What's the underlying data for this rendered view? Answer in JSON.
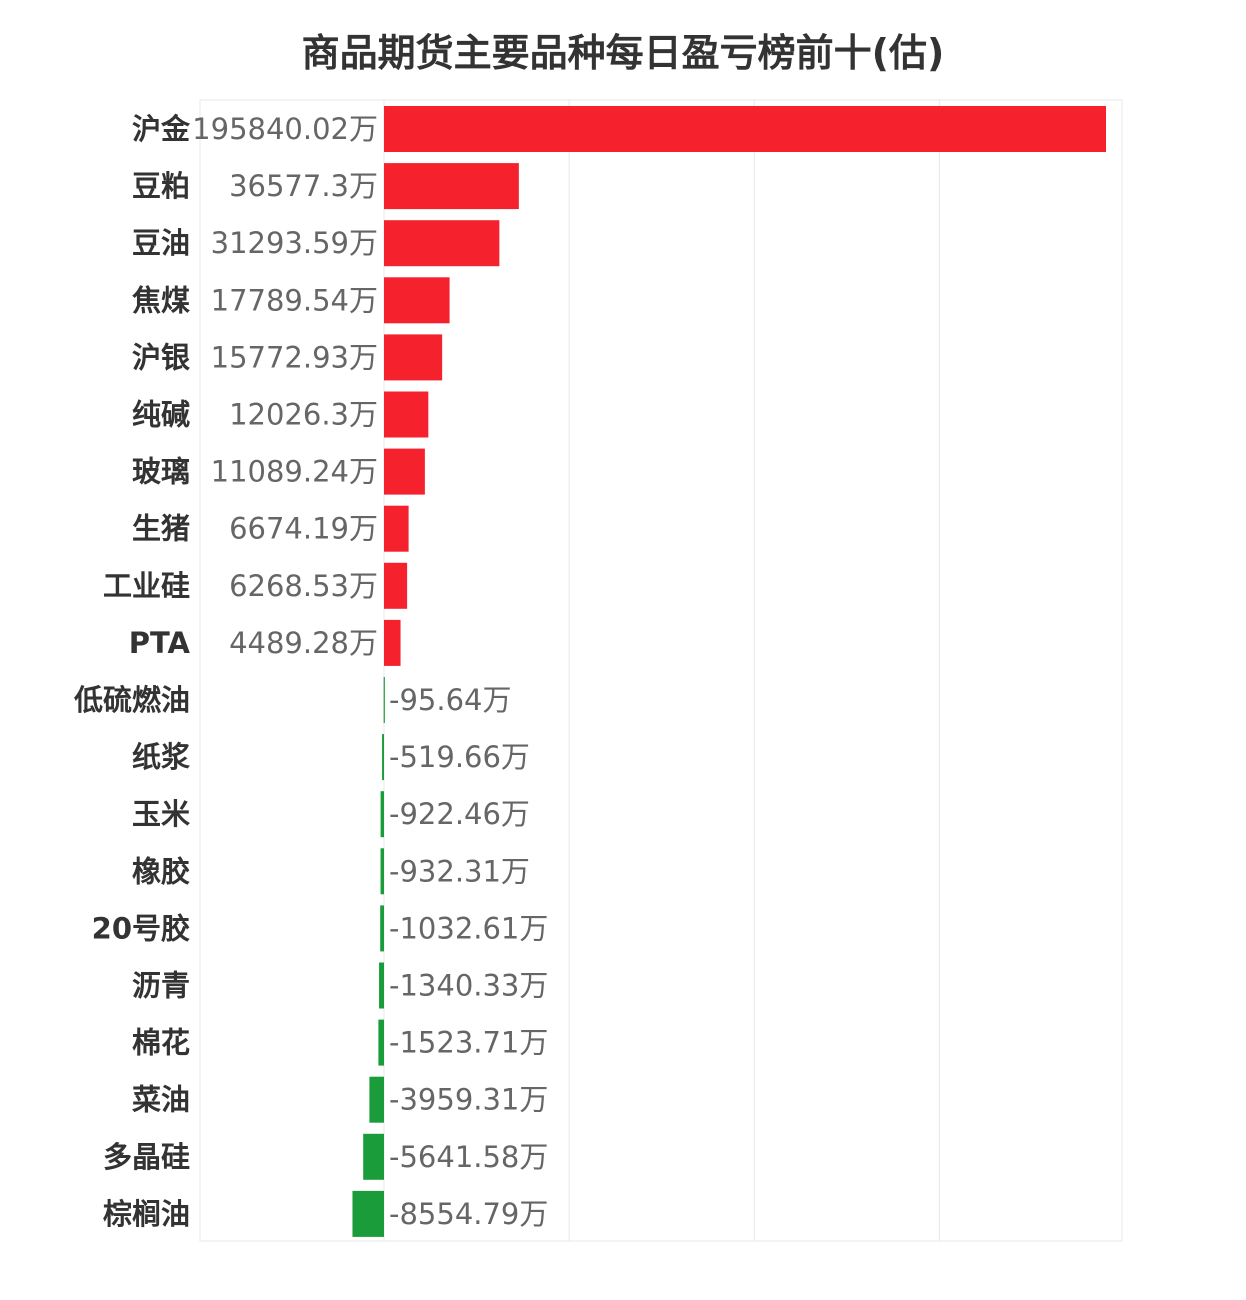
{
  "chart_data": {
    "type": "bar",
    "orientation": "horizontal",
    "title": "商品期货主要品种每日盈亏榜前十(估)",
    "xlabel": "",
    "ylabel": "",
    "unit": "万",
    "grid": true,
    "xlim": [
      -10000,
      200000
    ],
    "categories": [
      "沪金",
      "豆粕",
      "豆油",
      "焦煤",
      "沪银",
      "纯碱",
      "玻璃",
      "生猪",
      "工业硅",
      "PTA",
      "低硫燃油",
      "纸浆",
      "玉米",
      "橡胶",
      "20号胶",
      "沥青",
      "棉花",
      "菜油",
      "多晶硅",
      "棕榈油"
    ],
    "values": [
      195840.02,
      36577.3,
      31293.59,
      17789.54,
      15772.93,
      12026.3,
      11089.24,
      6674.19,
      6268.53,
      4489.28,
      -95.64,
      -519.66,
      -922.46,
      -932.31,
      -1032.61,
      -1340.33,
      -1523.71,
      -3959.31,
      -5641.58,
      -8554.79
    ],
    "value_labels": [
      "195840.02万",
      "36577.3万",
      "31293.59万",
      "17789.54万",
      "15772.93万",
      "12026.3万",
      "11089.24万",
      "6674.19万",
      "6268.53万",
      "4489.28万",
      "-95.64万",
      "-519.66万",
      "-922.46万",
      "-932.31万",
      "-1032.61万",
      "-1340.33万",
      "-1523.71万",
      "-3959.31万",
      "-5641.58万",
      "-8554.79万"
    ],
    "colors": {
      "positive": "#f5222d",
      "negative": "#1a9c3a",
      "category_label": "#333333",
      "value_label": "#666666",
      "grid": "#e8e8e8"
    }
  }
}
